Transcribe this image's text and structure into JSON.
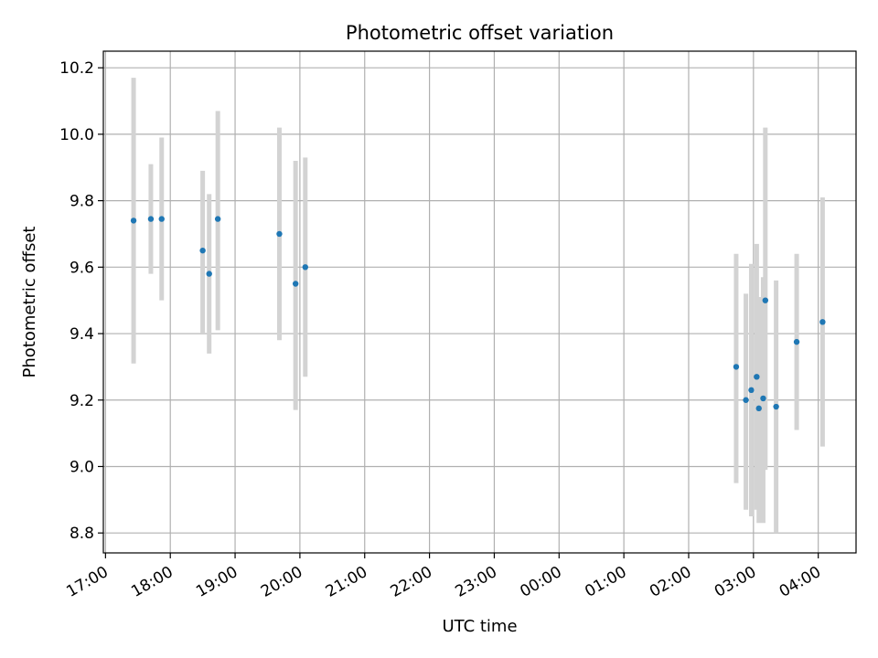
{
  "chart_data": {
    "type": "scatter",
    "title": "Photometric offset variation",
    "xlabel": "UTC time",
    "ylabel": "Photometric offset",
    "x_tick_labels": [
      "17:00",
      "18:00",
      "19:00",
      "20:00",
      "21:00",
      "22:00",
      "23:00",
      "00:00",
      "01:00",
      "02:00",
      "03:00",
      "04:00"
    ],
    "x_ticks": [
      "17:00",
      "18:00",
      "19:00",
      "20:00",
      "21:00",
      "22:00",
      "23:00",
      "00:00",
      "01:00",
      "02:00",
      "03:00",
      "04:00"
    ],
    "xlim": [
      "16:58",
      "04:35"
    ],
    "y_ticks": [
      8.8,
      9.0,
      9.2,
      9.4,
      9.6,
      9.8,
      10.0,
      10.2
    ],
    "y_tick_labels": [
      "8.8",
      "9.0",
      "9.2",
      "9.4",
      "9.6",
      "9.8",
      "10.0",
      "10.2"
    ],
    "ylim": [
      8.74,
      10.25
    ],
    "grid": true,
    "colors": {
      "point": "#1f77b4",
      "errorbar": "#d3d3d3",
      "grid": "#b0b0b0"
    },
    "points": [
      {
        "x": "17:26",
        "y": 9.74,
        "low": 9.31,
        "high": 10.17
      },
      {
        "x": "17:42",
        "y": 9.745,
        "low": 9.58,
        "high": 9.91
      },
      {
        "x": "17:52",
        "y": 9.745,
        "low": 9.5,
        "high": 9.99
      },
      {
        "x": "18:30",
        "y": 9.65,
        "low": 9.4,
        "high": 9.89
      },
      {
        "x": "18:36",
        "y": 9.58,
        "low": 9.34,
        "high": 9.82
      },
      {
        "x": "18:44",
        "y": 9.745,
        "low": 9.41,
        "high": 10.07
      },
      {
        "x": "19:41",
        "y": 9.7,
        "low": 9.38,
        "high": 10.02
      },
      {
        "x": "19:56",
        "y": 9.55,
        "low": 9.17,
        "high": 9.92
      },
      {
        "x": "20:05",
        "y": 9.6,
        "low": 9.27,
        "high": 9.93
      },
      {
        "x": "02:44",
        "y": 9.3,
        "low": 8.95,
        "high": 9.64
      },
      {
        "x": "02:53",
        "y": 9.2,
        "low": 8.87,
        "high": 9.52
      },
      {
        "x": "02:58",
        "y": 9.23,
        "low": 8.85,
        "high": 9.61
      },
      {
        "x": "03:03",
        "y": 9.27,
        "low": 8.87,
        "high": 9.67
      },
      {
        "x": "03:05",
        "y": 9.175,
        "low": 8.83,
        "high": 9.51
      },
      {
        "x": "03:09",
        "y": 9.205,
        "low": 8.83,
        "high": 9.57
      },
      {
        "x": "03:11",
        "y": 9.5,
        "low": 8.99,
        "high": 10.02
      },
      {
        "x": "03:21",
        "y": 9.18,
        "low": 8.8,
        "high": 9.56
      },
      {
        "x": "03:40",
        "y": 9.375,
        "low": 9.11,
        "high": 9.64
      },
      {
        "x": "04:04",
        "y": 9.435,
        "low": 9.06,
        "high": 9.81
      }
    ]
  }
}
